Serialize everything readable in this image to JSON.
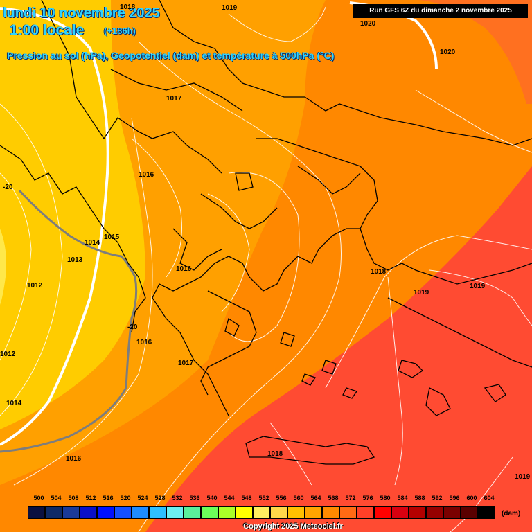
{
  "header": {
    "date": "lundi 10 novembre 2025",
    "time": "1:00 locale",
    "lead": "(+186h)",
    "subtitle": "Pression au sol (hPa), Geopotentiel (dam) et température à 500hPa (°C)",
    "run": "Run GFS 6Z du dimanche 2 novembre 2025"
  },
  "pressure_labels": [
    "1018",
    "1019",
    "1020",
    "1020",
    "1017",
    "1016",
    "1015",
    "1014",
    "1013",
    "1012",
    "1012",
    "1016",
    "1016",
    "1017",
    "1014",
    "1016",
    "1018",
    "1018",
    "1019",
    "1019",
    "1019"
  ],
  "temperature_labels": [
    "-20",
    "-20"
  ],
  "legend": {
    "values": [
      "500",
      "504",
      "508",
      "512",
      "516",
      "520",
      "524",
      "528",
      "532",
      "536",
      "540",
      "544",
      "548",
      "552",
      "556",
      "560",
      "564",
      "568",
      "572",
      "576",
      "580",
      "584",
      "588",
      "592",
      "596",
      "600",
      "604"
    ],
    "colors": [
      "#0a1040",
      "#0e2a66",
      "#1a3a9a",
      "#0a10c8",
      "#0010ff",
      "#1450ff",
      "#1e8cff",
      "#2ec0ff",
      "#6cf0f0",
      "#5af09a",
      "#6cff5a",
      "#aaff28",
      "#ffff00",
      "#ffee60",
      "#ffd84a",
      "#ffc000",
      "#ffa400",
      "#ff8a00",
      "#ff6a14",
      "#ff4028",
      "#ff0000",
      "#d80010",
      "#b40000",
      "#960000",
      "#7a0000",
      "#5a0000",
      "#000000"
    ],
    "unit": "(dam)"
  },
  "copyright": "Copyright 2025 Meteociel.fr",
  "colors": {
    "field_yellow": "#ffcc00",
    "field_orange_light": "#ffa000",
    "field_orange": "#ff8800",
    "field_orange_dark": "#ff6a00",
    "field_red": "#ff4b32"
  }
}
